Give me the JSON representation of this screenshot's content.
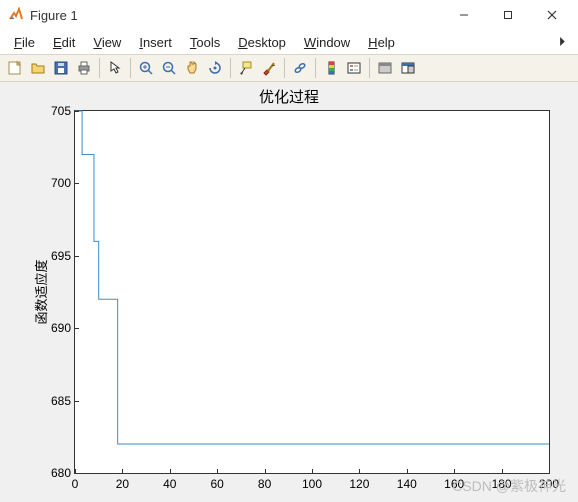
{
  "window": {
    "title": "Figure 1",
    "minimize": "—",
    "maximize": "☐",
    "close": "✕"
  },
  "menu": {
    "file": "File",
    "file_u": "F",
    "edit": "Edit",
    "edit_u": "E",
    "view": "View",
    "view_u": "V",
    "insert": "Insert",
    "insert_u": "I",
    "tools": "Tools",
    "tools_u": "T",
    "desktop": "Desktop",
    "desktop_u": "D",
    "window": "Window",
    "window_u": "W",
    "help": "Help",
    "help_u": "H"
  },
  "toolbar_icons": [
    "new-figure",
    "open",
    "save",
    "print",
    "sep",
    "arrow",
    "sep",
    "zoom-in",
    "zoom-out",
    "pan",
    "rotate",
    "sep",
    "data-cursor",
    "brush",
    "sep",
    "link",
    "sep",
    "colorbar",
    "legend",
    "sep",
    "hide-tools",
    "dock"
  ],
  "chart": {
    "type": "line",
    "title": "优化过程",
    "ylabel": "函数适应度",
    "xlim": [
      0,
      200
    ],
    "ylim": [
      680,
      705
    ],
    "xticks": [
      0,
      20,
      40,
      60,
      80,
      100,
      120,
      140,
      160,
      180,
      200
    ],
    "yticks": [
      680,
      685,
      690,
      695,
      700,
      705
    ],
    "line_color": "#3b8ecb",
    "line_width": 1,
    "background_color": "#ffffff",
    "figure_background": "#f0f0f0",
    "axis_color": "#333333",
    "series": {
      "x": [
        0,
        3,
        3,
        8,
        8,
        10,
        10,
        18,
        18,
        200
      ],
      "y": [
        705,
        705,
        702,
        702,
        696,
        696,
        692,
        692,
        682,
        682
      ]
    }
  },
  "watermark": "CSDN @紫极神光"
}
